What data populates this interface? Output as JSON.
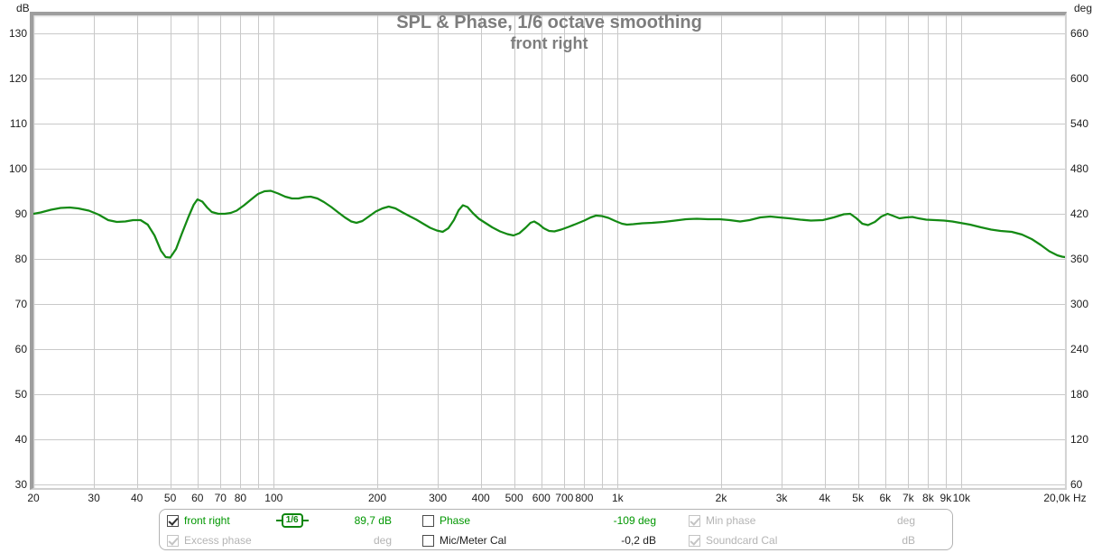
{
  "title": {
    "line1": "SPL & Phase, 1/6 octave smoothing",
    "line2": "front right"
  },
  "legend": {
    "items": [
      {
        "id": "front-right",
        "label": "front right",
        "checked": true,
        "disabled": false,
        "badge": "1/6",
        "value": "89,7 dB",
        "text_color": "green"
      },
      {
        "id": "phase",
        "label": "Phase",
        "checked": false,
        "disabled": false,
        "value": "-109 deg",
        "text_color": "green"
      },
      {
        "id": "min-phase",
        "label": "Min phase",
        "checked": true,
        "disabled": true,
        "value": "deg",
        "text_color": "gray"
      },
      {
        "id": "excess-phase",
        "label": "Excess phase",
        "checked": true,
        "disabled": true,
        "value": "deg",
        "text_color": "gray"
      },
      {
        "id": "mic-meter-cal",
        "label": "Mic/Meter Cal",
        "checked": false,
        "disabled": false,
        "value": "-0,2 dB",
        "text_color": "black"
      },
      {
        "id": "soundcard-cal",
        "label": "Soundcard Cal",
        "checked": true,
        "disabled": true,
        "value": "dB",
        "text_color": "gray"
      }
    ]
  },
  "colors": {
    "curve": "#148a14",
    "grid": "#c9c9c9",
    "title_gray": "#7d7d7d",
    "legend_green": "#009700",
    "disabled_gray": "#b4b4b4"
  },
  "chart_data": {
    "type": "line",
    "title": "SPL & Phase, 1/6 octave smoothing",
    "subtitle": "front right",
    "x_scale": "log",
    "xlim": [
      20,
      20000
    ],
    "ylim_db": [
      29.2,
      134.0
    ],
    "ylabel_left": "dB",
    "ylabel_right": "deg",
    "xlabel_unit": "Hz",
    "grid": true,
    "y_ticks_db": [
      130,
      120,
      110,
      100,
      90,
      80,
      70,
      60,
      50,
      40,
      30
    ],
    "y_ticks_deg": [
      660,
      600,
      540,
      480,
      420,
      360,
      300,
      240,
      180,
      120,
      60
    ],
    "x_gridlines": [
      20,
      30,
      40,
      50,
      60,
      70,
      80,
      90,
      100,
      200,
      300,
      400,
      500,
      600,
      700,
      800,
      900,
      1000,
      2000,
      3000,
      4000,
      5000,
      6000,
      7000,
      8000,
      9000,
      10000,
      20000
    ],
    "x_ticks": [
      {
        "f": 20,
        "label": "20"
      },
      {
        "f": 30,
        "label": "30"
      },
      {
        "f": 40,
        "label": "40"
      },
      {
        "f": 50,
        "label": "50"
      },
      {
        "f": 60,
        "label": "60"
      },
      {
        "f": 70,
        "label": "70"
      },
      {
        "f": 80,
        "label": "80"
      },
      {
        "f": 100,
        "label": "100"
      },
      {
        "f": 200,
        "label": "200"
      },
      {
        "f": 300,
        "label": "300"
      },
      {
        "f": 400,
        "label": "400"
      },
      {
        "f": 500,
        "label": "500"
      },
      {
        "f": 600,
        "label": "600"
      },
      {
        "f": 700,
        "label": "700"
      },
      {
        "f": 800,
        "label": "800"
      },
      {
        "f": 1000,
        "label": "1k"
      },
      {
        "f": 2000,
        "label": "2k"
      },
      {
        "f": 3000,
        "label": "3k"
      },
      {
        "f": 4000,
        "label": "4k"
      },
      {
        "f": 5000,
        "label": "5k"
      },
      {
        "f": 6000,
        "label": "6k"
      },
      {
        "f": 7000,
        "label": "7k"
      },
      {
        "f": 8000,
        "label": "8k"
      },
      {
        "f": 9000,
        "label": "9k"
      },
      {
        "f": 10000,
        "label": "10k"
      },
      {
        "f": 20000,
        "label": "20,0k Hz"
      }
    ],
    "series": [
      {
        "name": "front right",
        "unit": "dB SPL",
        "smoothing": "1/6 octave",
        "color": "#148a14",
        "points": [
          [
            20,
            90.0
          ],
          [
            21,
            90.3
          ],
          [
            22.5,
            90.9
          ],
          [
            24,
            91.3
          ],
          [
            25.5,
            91.4
          ],
          [
            27,
            91.2
          ],
          [
            29,
            90.7
          ],
          [
            31,
            89.8
          ],
          [
            33,
            88.6
          ],
          [
            35,
            88.2
          ],
          [
            37,
            88.3
          ],
          [
            39,
            88.6
          ],
          [
            41,
            88.6
          ],
          [
            43,
            87.6
          ],
          [
            45,
            85.2
          ],
          [
            47,
            81.8
          ],
          [
            48.5,
            80.4
          ],
          [
            50,
            80.3
          ],
          [
            52,
            82.2
          ],
          [
            54,
            85.5
          ],
          [
            56.5,
            89.3
          ],
          [
            58.5,
            92.0
          ],
          [
            60,
            93.2
          ],
          [
            62,
            92.7
          ],
          [
            64,
            91.4
          ],
          [
            66,
            90.4
          ],
          [
            69,
            90.0
          ],
          [
            72,
            90.0
          ],
          [
            75,
            90.2
          ],
          [
            78,
            90.7
          ],
          [
            82,
            91.9
          ],
          [
            86,
            93.2
          ],
          [
            90,
            94.4
          ],
          [
            94,
            95.0
          ],
          [
            98,
            95.1
          ],
          [
            103,
            94.5
          ],
          [
            108,
            93.8
          ],
          [
            113,
            93.4
          ],
          [
            118,
            93.4
          ],
          [
            123,
            93.7
          ],
          [
            128,
            93.8
          ],
          [
            134,
            93.4
          ],
          [
            140,
            92.6
          ],
          [
            147,
            91.5
          ],
          [
            154,
            90.3
          ],
          [
            161,
            89.2
          ],
          [
            168,
            88.3
          ],
          [
            174,
            88.0
          ],
          [
            181,
            88.4
          ],
          [
            189,
            89.4
          ],
          [
            198,
            90.5
          ],
          [
            207,
            91.2
          ],
          [
            216,
            91.6
          ],
          [
            226,
            91.2
          ],
          [
            237,
            90.3
          ],
          [
            248,
            89.5
          ],
          [
            260,
            88.7
          ],
          [
            272,
            87.8
          ],
          [
            285,
            86.9
          ],
          [
            298,
            86.3
          ],
          [
            310,
            86.0
          ],
          [
            322,
            86.8
          ],
          [
            334,
            88.6
          ],
          [
            345,
            90.8
          ],
          [
            355,
            91.9
          ],
          [
            366,
            91.5
          ],
          [
            380,
            90.1
          ],
          [
            395,
            88.9
          ],
          [
            412,
            88.0
          ],
          [
            432,
            87.0
          ],
          [
            455,
            86.1
          ],
          [
            478,
            85.5
          ],
          [
            498,
            85.2
          ],
          [
            518,
            85.7
          ],
          [
            540,
            86.9
          ],
          [
            558,
            88.0
          ],
          [
            572,
            88.3
          ],
          [
            590,
            87.7
          ],
          [
            610,
            86.8
          ],
          [
            632,
            86.2
          ],
          [
            655,
            86.1
          ],
          [
            685,
            86.5
          ],
          [
            720,
            87.1
          ],
          [
            760,
            87.8
          ],
          [
            800,
            88.5
          ],
          [
            835,
            89.2
          ],
          [
            865,
            89.6
          ],
          [
            900,
            89.5
          ],
          [
            940,
            89.1
          ],
          [
            985,
            88.4
          ],
          [
            1030,
            87.8
          ],
          [
            1065,
            87.6
          ],
          [
            1110,
            87.7
          ],
          [
            1180,
            87.9
          ],
          [
            1260,
            88.0
          ],
          [
            1360,
            88.2
          ],
          [
            1470,
            88.5
          ],
          [
            1580,
            88.8
          ],
          [
            1700,
            88.9
          ],
          [
            1830,
            88.8
          ],
          [
            1980,
            88.8
          ],
          [
            2120,
            88.6
          ],
          [
            2270,
            88.3
          ],
          [
            2420,
            88.6
          ],
          [
            2600,
            89.2
          ],
          [
            2780,
            89.4
          ],
          [
            2950,
            89.2
          ],
          [
            3150,
            89.0
          ],
          [
            3400,
            88.7
          ],
          [
            3650,
            88.5
          ],
          [
            3950,
            88.6
          ],
          [
            4250,
            89.2
          ],
          [
            4550,
            89.9
          ],
          [
            4750,
            90.0
          ],
          [
            4950,
            89.0
          ],
          [
            5150,
            87.8
          ],
          [
            5350,
            87.5
          ],
          [
            5600,
            88.2
          ],
          [
            5850,
            89.4
          ],
          [
            6100,
            90.0
          ],
          [
            6350,
            89.5
          ],
          [
            6600,
            89.0
          ],
          [
            6900,
            89.2
          ],
          [
            7200,
            89.3
          ],
          [
            7500,
            89.0
          ],
          [
            7900,
            88.7
          ],
          [
            8400,
            88.6
          ],
          [
            8900,
            88.5
          ],
          [
            9400,
            88.3
          ],
          [
            9900,
            88.0
          ],
          [
            10600,
            87.6
          ],
          [
            11400,
            87.0
          ],
          [
            12200,
            86.5
          ],
          [
            13000,
            86.2
          ],
          [
            14000,
            86.0
          ],
          [
            15000,
            85.4
          ],
          [
            16000,
            84.4
          ],
          [
            17000,
            83.1
          ],
          [
            18000,
            81.7
          ],
          [
            19000,
            80.8
          ],
          [
            19600,
            80.5
          ],
          [
            20000,
            80.4
          ]
        ]
      }
    ]
  }
}
